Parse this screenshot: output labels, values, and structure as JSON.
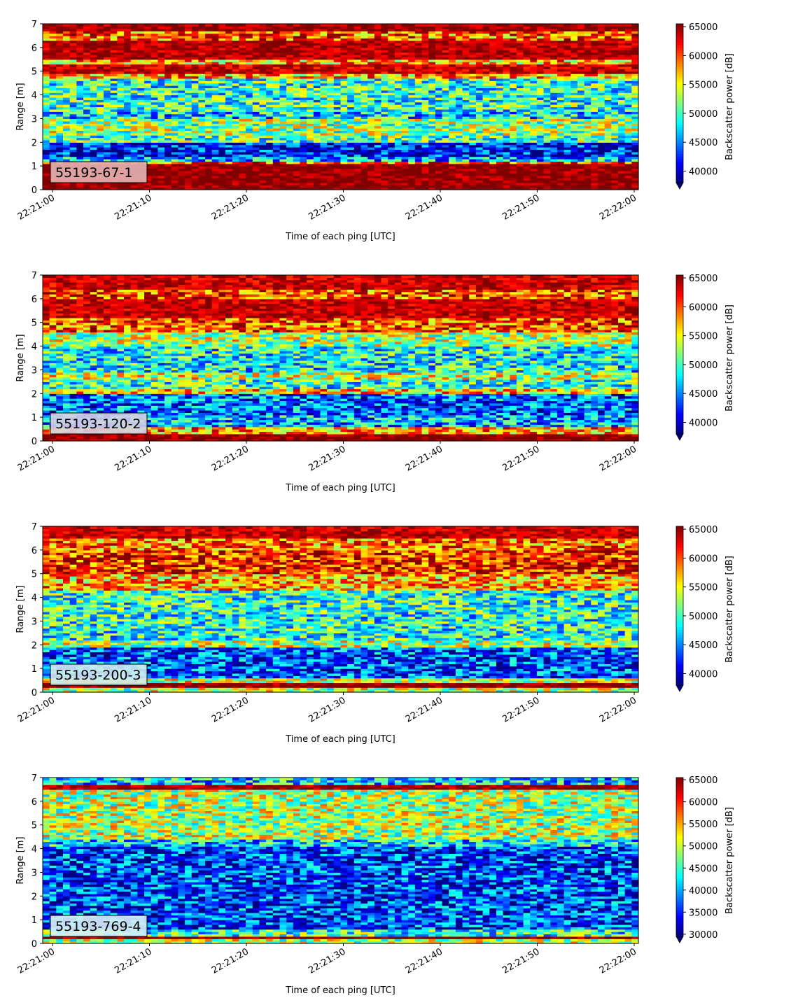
{
  "chart_data": [
    {
      "type": "heatmap",
      "panel_label": "55193-67-1",
      "xlabel": "Time of each ping [UTC]",
      "ylabel": "Range [m]",
      "x_tick_labels": [
        "22:21:00",
        "22:21:10",
        "22:21:20",
        "22:21:30",
        "22:21:40",
        "22:21:50",
        "22:22:00"
      ],
      "ylim": [
        0,
        7
      ],
      "y_ticks": [
        0,
        1,
        2,
        3,
        4,
        5,
        6,
        7
      ],
      "colorbar": {
        "label": "Backscatter power [dB]",
        "ticks": [
          40000,
          45000,
          50000,
          55000,
          60000,
          65000
        ],
        "vmin": 38000,
        "vmax": 65500,
        "extend": "min"
      },
      "label_box_color": "#e3b4b4",
      "colormap": "jet",
      "profile": [
        [
          0,
          0.2,
          100
        ],
        [
          0.2,
          1.1,
          99
        ],
        [
          1.1,
          1.2,
          78
        ],
        [
          1.2,
          1.45,
          30
        ],
        [
          1.45,
          2.0,
          12
        ],
        [
          2.0,
          2.3,
          45
        ],
        [
          2.3,
          3.0,
          52
        ],
        [
          3.0,
          3.3,
          35
        ],
        [
          3.3,
          4.7,
          42
        ],
        [
          4.7,
          4.95,
          70
        ],
        [
          4.95,
          5.3,
          92
        ],
        [
          5.3,
          5.5,
          70
        ],
        [
          5.5,
          6.3,
          95
        ],
        [
          6.3,
          6.7,
          78
        ],
        [
          6.7,
          7.0,
          97
        ]
      ]
    },
    {
      "type": "heatmap",
      "panel_label": "55193-120-2",
      "xlabel": "Time of each ping [UTC]",
      "ylabel": "Range [m]",
      "x_tick_labels": [
        "22:21:00",
        "22:21:10",
        "22:21:20",
        "22:21:30",
        "22:21:40",
        "22:21:50",
        "22:22:00"
      ],
      "ylim": [
        0,
        7
      ],
      "y_ticks": [
        0,
        1,
        2,
        3,
        4,
        5,
        6,
        7
      ],
      "colorbar": {
        "label": "Backscatter power [dB]",
        "ticks": [
          40000,
          45000,
          50000,
          55000,
          60000,
          65000
        ],
        "vmin": 38000,
        "vmax": 65500,
        "extend": "min"
      },
      "label_box_color": "#d6cfe6",
      "colormap": "jet",
      "profile": [
        [
          0,
          0.35,
          100
        ],
        [
          0.35,
          0.6,
          72
        ],
        [
          0.6,
          1.1,
          30
        ],
        [
          1.1,
          2.0,
          22
        ],
        [
          2.0,
          2.2,
          68
        ],
        [
          2.2,
          2.6,
          42
        ],
        [
          2.6,
          2.9,
          58
        ],
        [
          2.9,
          4.0,
          38
        ],
        [
          4.0,
          4.6,
          55
        ],
        [
          4.6,
          5.2,
          80
        ],
        [
          5.2,
          6.0,
          93
        ],
        [
          6.0,
          6.4,
          80
        ],
        [
          6.4,
          7.0,
          92
        ]
      ]
    },
    {
      "type": "heatmap",
      "panel_label": "55193-200-3",
      "xlabel": "Time of each ping [UTC]",
      "ylabel": "Range [m]",
      "x_tick_labels": [
        "22:21:00",
        "22:21:10",
        "22:21:20",
        "22:21:30",
        "22:21:40",
        "22:21:50",
        "22:22:00"
      ],
      "ylim": [
        0,
        7
      ],
      "y_ticks": [
        0,
        1,
        2,
        3,
        4,
        5,
        6,
        7
      ],
      "colorbar": {
        "label": "Backscatter power [dB]",
        "ticks": [
          40000,
          45000,
          50000,
          55000,
          60000,
          65000
        ],
        "vmin": 38000,
        "vmax": 65500,
        "extend": "min"
      },
      "label_box_color": "#d2ecf0",
      "colormap": "jet",
      "profile": [
        [
          0,
          0.2,
          55
        ],
        [
          0.2,
          0.4,
          100
        ],
        [
          0.4,
          0.6,
          58
        ],
        [
          0.6,
          1.9,
          20
        ],
        [
          1.9,
          2.2,
          55
        ],
        [
          2.2,
          3.3,
          40
        ],
        [
          3.3,
          4.3,
          42
        ],
        [
          4.3,
          5.0,
          70
        ],
        [
          5.0,
          6.0,
          85
        ],
        [
          6.0,
          6.5,
          75
        ],
        [
          6.5,
          7.0,
          93
        ]
      ]
    },
    {
      "type": "heatmap",
      "panel_label": "55193-769-4",
      "xlabel": "Time of each ping [UTC]",
      "ylabel": "Range [m]",
      "x_tick_labels": [
        "22:21:00",
        "22:21:10",
        "22:21:20",
        "22:21:30",
        "22:21:40",
        "22:21:50",
        "22:22:00"
      ],
      "ylim": [
        0,
        7
      ],
      "y_ticks": [
        0,
        1,
        2,
        3,
        4,
        5,
        6,
        7
      ],
      "colorbar": {
        "label": "Backscatter power [dB]",
        "ticks": [
          30000,
          35000,
          40000,
          45000,
          50000,
          55000,
          60000,
          65000
        ],
        "vmin": 29500,
        "vmax": 65500,
        "extend": "min"
      },
      "label_box_color": "#d8f0f6",
      "colormap": "jet",
      "profile": [
        [
          0,
          0.2,
          55
        ],
        [
          0.2,
          0.35,
          100
        ],
        [
          0.35,
          0.6,
          42
        ],
        [
          0.6,
          4.1,
          18
        ],
        [
          4.1,
          4.4,
          35
        ],
        [
          4.4,
          6.3,
          55
        ],
        [
          6.3,
          6.5,
          55
        ],
        [
          6.5,
          6.7,
          97
        ],
        [
          6.7,
          7.0,
          35
        ]
      ]
    }
  ]
}
